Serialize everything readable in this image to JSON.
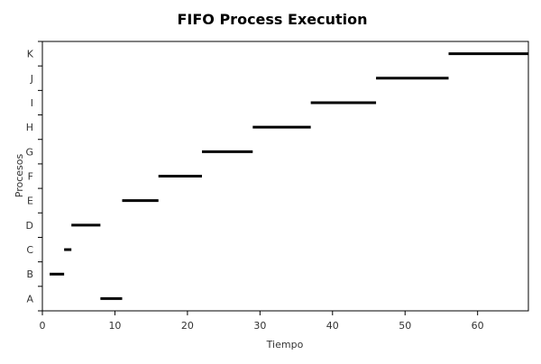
{
  "chart_data": {
    "type": "gantt",
    "title": "FIFO Process Execution",
    "xlabel": "Tiempo",
    "ylabel": "Procesos",
    "xlim": [
      0,
      67
    ],
    "xticks": [
      0,
      10,
      20,
      30,
      40,
      50,
      60
    ],
    "categories": [
      "A",
      "B",
      "C",
      "D",
      "E",
      "F",
      "G",
      "H",
      "I",
      "J",
      "K"
    ],
    "intervals": [
      {
        "process": "A",
        "start": 8,
        "end": 11
      },
      {
        "process": "B",
        "start": 1,
        "end": 3
      },
      {
        "process": "C",
        "start": 3,
        "end": 4
      },
      {
        "process": "D",
        "start": 4,
        "end": 8
      },
      {
        "process": "E",
        "start": 11,
        "end": 16
      },
      {
        "process": "F",
        "start": 16,
        "end": 22
      },
      {
        "process": "G",
        "start": 22,
        "end": 29
      },
      {
        "process": "H",
        "start": 29,
        "end": 37
      },
      {
        "process": "I",
        "start": 37,
        "end": 46
      },
      {
        "process": "J",
        "start": 46,
        "end": 56
      },
      {
        "process": "K",
        "start": 56,
        "end": 67
      }
    ],
    "grid": false,
    "colors": {
      "bar": "#000000",
      "axis": "#000000",
      "text": "#333333"
    }
  }
}
